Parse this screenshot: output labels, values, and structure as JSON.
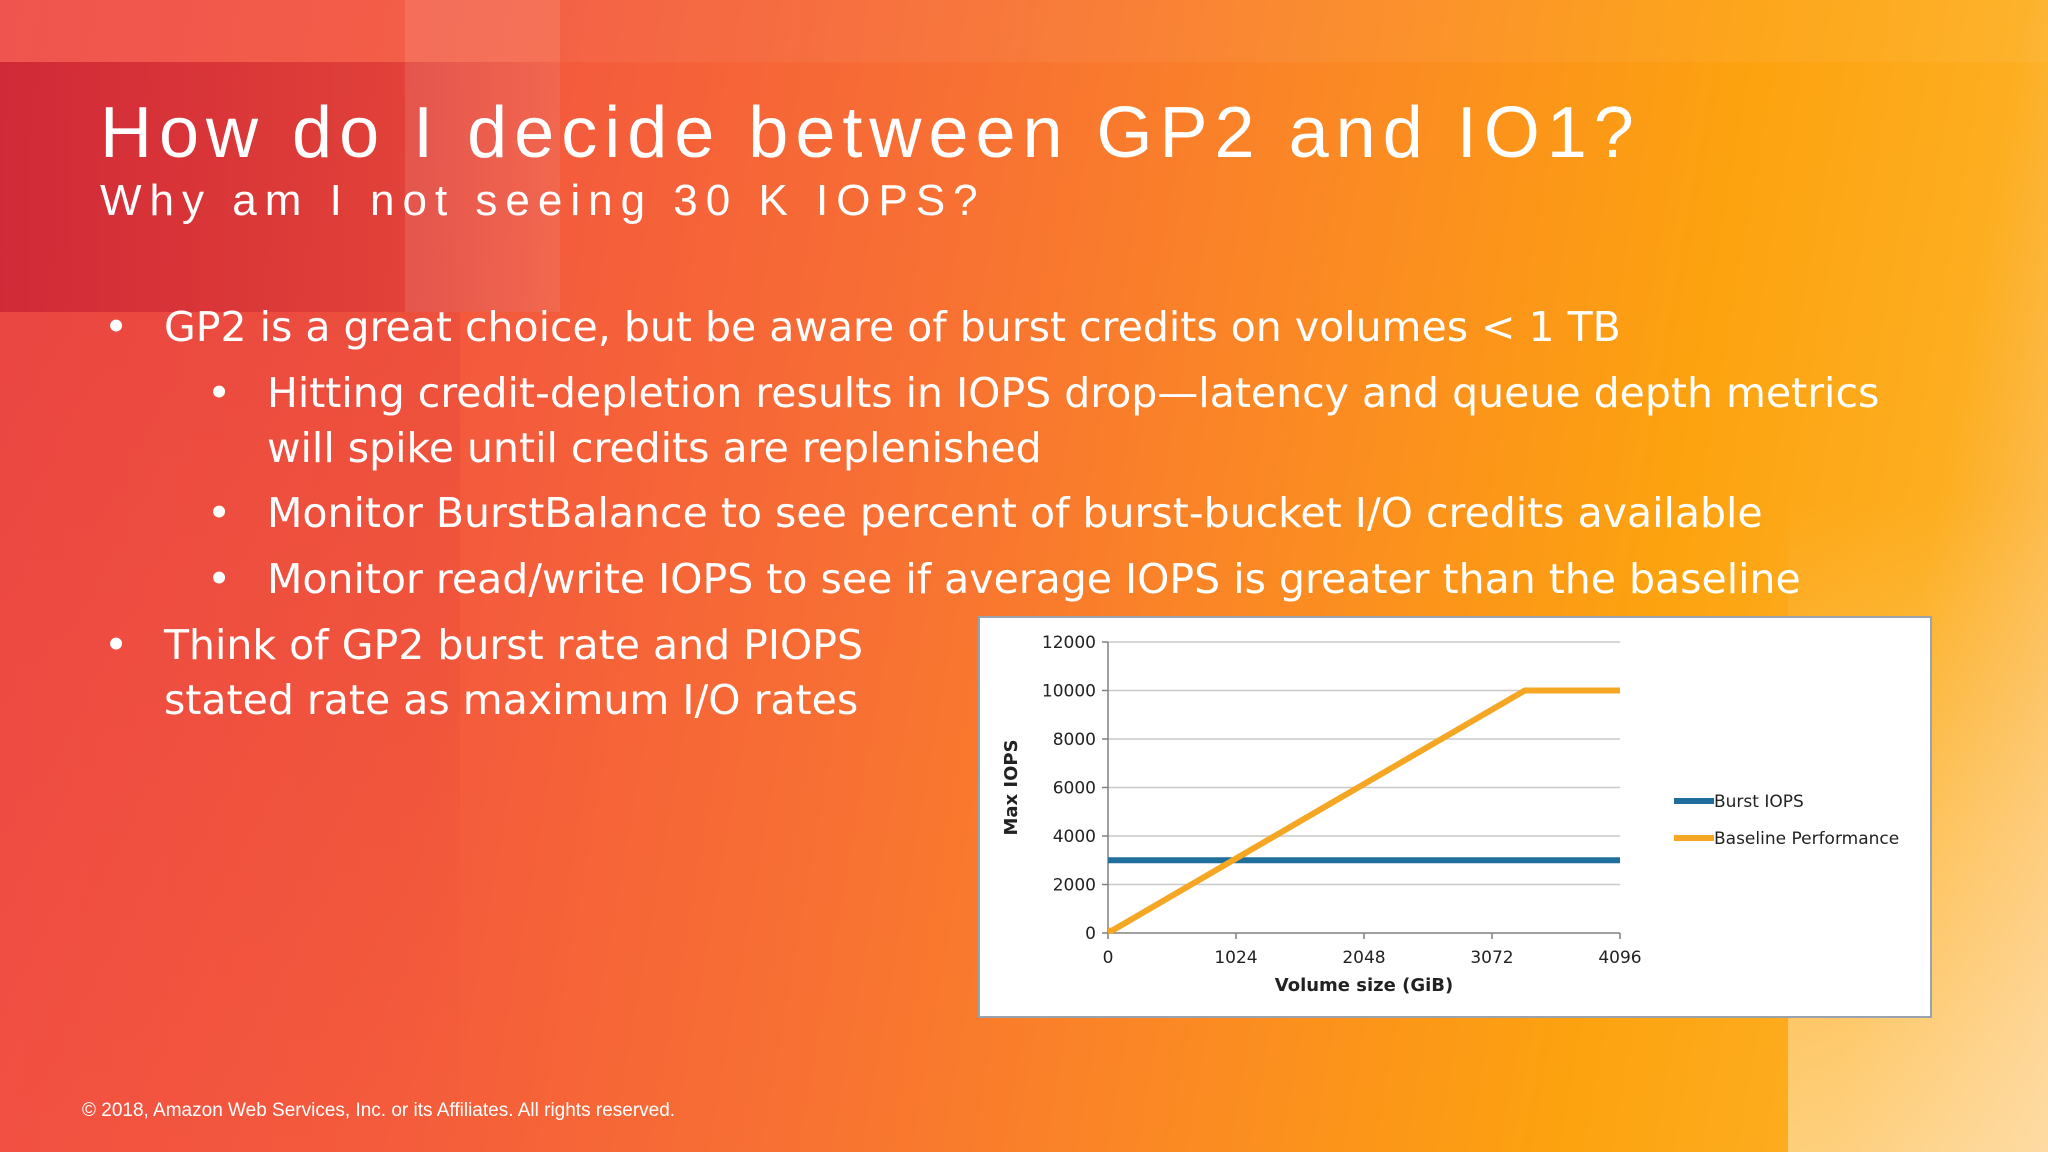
{
  "slide": {
    "title": "How do I decide between GP2 and IO1?",
    "subtitle": "Why am I not seeing 30 K IOPS?",
    "bullet_symbol": "•",
    "bullets": [
      {
        "level": 1,
        "text": "GP2 is a great choice, but be aware of burst credits on volumes < 1 TB"
      },
      {
        "level": 2,
        "text": "Hitting credit-depletion results in IOPS drop—latency and queue depth metrics will spike until credits are replenished"
      },
      {
        "level": 2,
        "text": "Monitor BurstBalance to see percent of burst-bucket I/O credits available"
      },
      {
        "level": 2,
        "text": "Monitor read/write IOPS to see if average IOPS is greater than the baseline"
      },
      {
        "level": 1,
        "text": "Think of GP2 burst rate and PIOPS stated rate as maximum I/O rates"
      }
    ],
    "footer": "© 2018, Amazon Web Services, Inc. or its Affiliates. All rights reserved."
  },
  "chart_data": {
    "type": "line",
    "title": "",
    "xlabel": "Volume size (GiB)",
    "ylabel": "Max IOPS",
    "xlim": [
      0,
      4096
    ],
    "ylim": [
      0,
      12000
    ],
    "x_ticks": [
      0,
      1024,
      2048,
      3072,
      4096
    ],
    "y_ticks": [
      0,
      2000,
      4000,
      6000,
      8000,
      10000,
      12000
    ],
    "grid": true,
    "legend_position": "right",
    "series": [
      {
        "name": "Burst IOPS",
        "color": "#1f6e9c",
        "points": [
          [
            0,
            3000
          ],
          [
            4096,
            3000
          ]
        ]
      },
      {
        "name": "Baseline Performance",
        "color": "#f5a623",
        "points": [
          [
            0,
            100
          ],
          [
            33,
            100
          ],
          [
            3334,
            10000
          ],
          [
            4096,
            10000
          ]
        ]
      }
    ]
  }
}
